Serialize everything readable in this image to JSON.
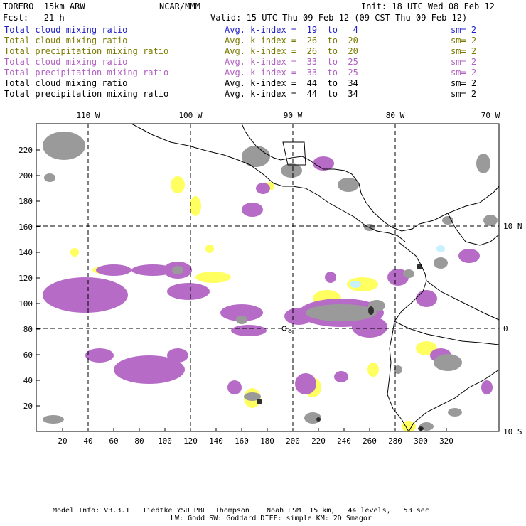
{
  "header": {
    "model": "TORERO  15km ARW",
    "center": "NCAR/MMM",
    "init": "Init: 18 UTC Wed 08 Feb 12",
    "fcst": "Fcst:   21 h",
    "valid": "Valid: 15 UTC Thu 09 Feb 12 (09 CST Thu 09 Feb 12)"
  },
  "legend": [
    {
      "field": "Total cloud mixing ratio",
      "kindex": "Avg. k-index =  19  to   4",
      "sm": "sm= 2",
      "color": "#1f1fc8"
    },
    {
      "field": "Total cloud mixing ratio",
      "kindex": "Avg. k-index =  26  to  20",
      "sm": "sm= 2",
      "color": "#7a7a00"
    },
    {
      "field": "Total precipitation mixing ratio",
      "kindex": "Avg. k-index =  26  to  20",
      "sm": "sm= 2",
      "color": "#7a7a00"
    },
    {
      "field": "Total cloud mixing ratio",
      "kindex": "Avg. k-index =  33  to  25",
      "sm": "sm= 2",
      "color": "#b060c0"
    },
    {
      "field": "Total precipitation mixing ratio",
      "kindex": "Avg. k-index =  33  to  25",
      "sm": "sm= 2",
      "color": "#b060c0"
    },
    {
      "field": "Total cloud mixing ratio",
      "kindex": "Avg. k-index =  44  to  34",
      "sm": "sm= 2",
      "color": "#000000"
    },
    {
      "field": "Total precipitation mixing ratio",
      "kindex": "Avg. k-index =  44  to  34",
      "sm": "sm= 2",
      "color": "#000000"
    }
  ],
  "map": {
    "top_lon_labels": [
      "110 W",
      "100 W",
      "90 W",
      "80 W",
      "70 W"
    ],
    "right_lat_labels": [
      "10 N",
      "0",
      "10 S"
    ],
    "x_ticks": [
      "20",
      "40",
      "60",
      "80",
      "100",
      "120",
      "140",
      "160",
      "180",
      "200",
      "220",
      "240",
      "260",
      "280",
      "300",
      "320"
    ],
    "y_ticks": [
      "20",
      "40",
      "60",
      "80",
      "100",
      "120",
      "140",
      "160",
      "180",
      "200",
      "220"
    ],
    "colors": {
      "gray": "#9a9a9a",
      "purple": "#b66cc6",
      "yellow": "#ffff60",
      "cyan": "#c8f0ff"
    }
  },
  "footer": {
    "line1": "Model Info: V3.3.1   Tiedtke YSU PBL  Thompson    Noah LSM  15 km,   44 levels,   53 sec",
    "line2": "LW: Godd SW: Goddard DIFF: simple KM: 2D Smagor"
  }
}
